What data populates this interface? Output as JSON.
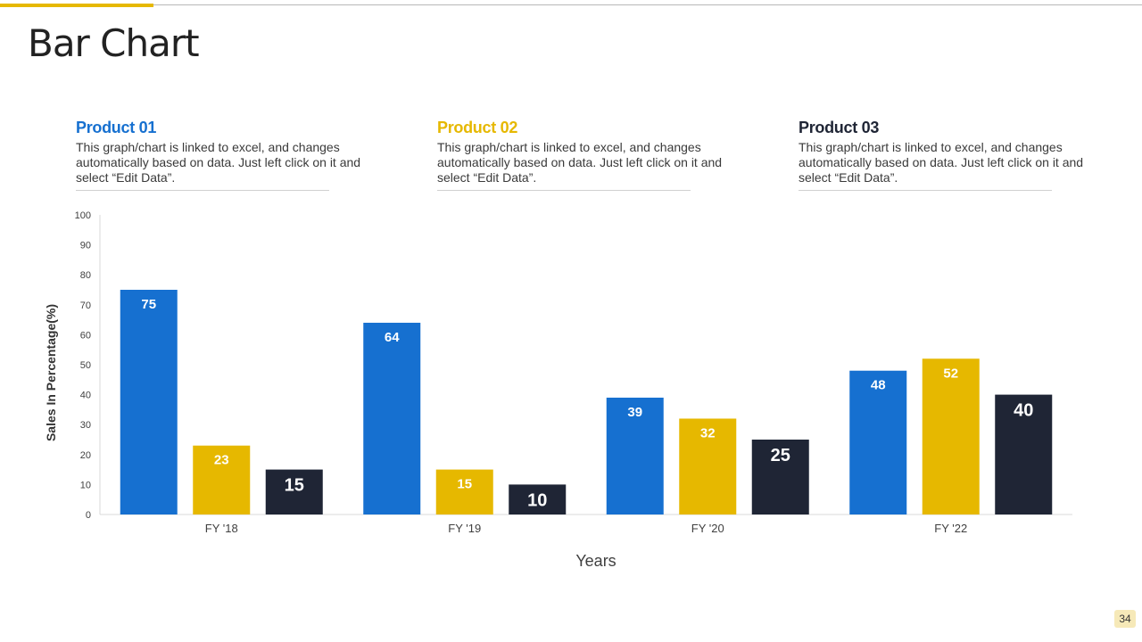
{
  "slide": {
    "title": "Bar Chart",
    "page_number": "34"
  },
  "colors": {
    "product1": "#1670d0",
    "product2": "#e6b800",
    "product3": "#1f2535",
    "accent": "#e6b800"
  },
  "products": [
    {
      "name": "Product 01",
      "description": "This graph/chart is linked to excel, and changes automatically based on data. Just left click on it and select “Edit Data”."
    },
    {
      "name": "Product 02",
      "description": "This graph/chart is linked to excel, and changes automatically based on data. Just left click on it and select “Edit Data”."
    },
    {
      "name": "Product 03",
      "description": "This graph/chart is linked to excel, and changes automatically based on data. Just left click on it and select “Edit Data”."
    }
  ],
  "chart_data": {
    "type": "bar",
    "title": "",
    "xlabel": "Years",
    "ylabel": "Sales In Percentage(%)",
    "ylim": [
      0,
      100
    ],
    "yticks": [
      0,
      10,
      20,
      30,
      40,
      50,
      60,
      70,
      80,
      90,
      100
    ],
    "categories": [
      "FY '18",
      "FY '19",
      "FY '20",
      "FY '22"
    ],
    "series": [
      {
        "name": "Product 01",
        "values": [
          75,
          64,
          39,
          48
        ]
      },
      {
        "name": "Product 02",
        "values": [
          23,
          15,
          32,
          52
        ]
      },
      {
        "name": "Product 03",
        "values": [
          15,
          10,
          25,
          40
        ]
      }
    ],
    "grid": false,
    "legend": "top"
  }
}
